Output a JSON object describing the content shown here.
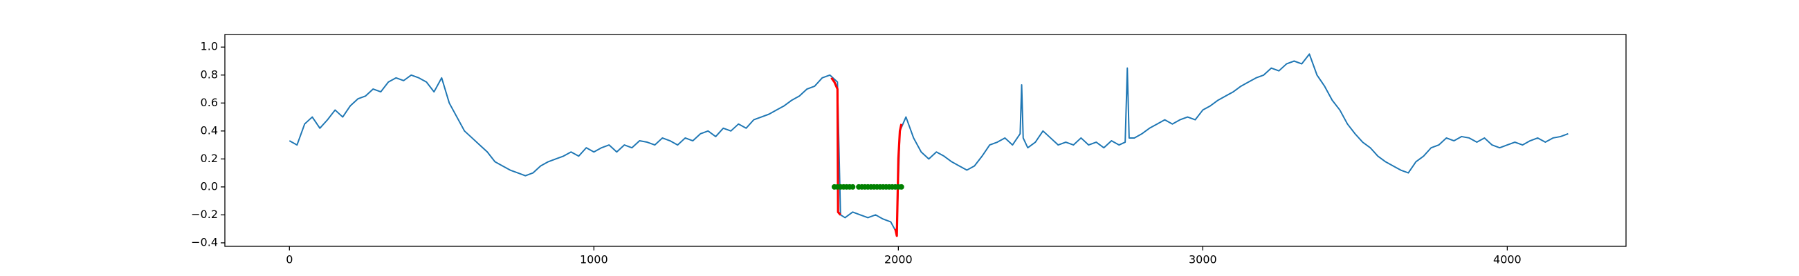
{
  "chart_data": {
    "type": "line",
    "xlim": [
      -212,
      4390
    ],
    "ylim": [
      -0.425,
      1.09
    ],
    "xticks": [
      0,
      1000,
      2000,
      3000,
      4000
    ],
    "yticks": [
      {
        "value": -0.4,
        "label": "−0.4"
      },
      {
        "value": -0.2,
        "label": "−0.2"
      },
      {
        "value": 0,
        "label": "0.0"
      },
      {
        "value": 0.2,
        "label": "0.2"
      },
      {
        "value": 0.4,
        "label": "0.4"
      },
      {
        "value": 0.6,
        "label": "0.6"
      },
      {
        "value": 0.8,
        "label": "0.8"
      },
      {
        "value": 1.0,
        "label": "1.0"
      }
    ],
    "series": [
      {
        "color": "#1f77b4",
        "marker": "none",
        "x": [
          0,
          25,
          50,
          75,
          100,
          125,
          150,
          175,
          200,
          225,
          250,
          275,
          300,
          325,
          350,
          375,
          400,
          425,
          450,
          475,
          500,
          525,
          550,
          575,
          600,
          625,
          650,
          675,
          700,
          725,
          750,
          775,
          800,
          825,
          850,
          875,
          900,
          925,
          950,
          975,
          1000,
          1025,
          1050,
          1075,
          1100,
          1125,
          1150,
          1175,
          1200,
          1225,
          1250,
          1275,
          1300,
          1325,
          1350,
          1375,
          1400,
          1425,
          1450,
          1475,
          1500,
          1525,
          1550,
          1575,
          1600,
          1625,
          1650,
          1675,
          1700,
          1725,
          1750,
          1775,
          1800,
          1810,
          1825,
          1850,
          1875,
          1900,
          1925,
          1950,
          1975,
          1995,
          2005,
          2025,
          2050,
          2075,
          2100,
          2125,
          2150,
          2175,
          2200,
          2225,
          2250,
          2275,
          2300,
          2325,
          2350,
          2375,
          2400,
          2405,
          2410,
          2425,
          2450,
          2475,
          2500,
          2525,
          2550,
          2575,
          2600,
          2625,
          2650,
          2675,
          2700,
          2725,
          2745,
          2752,
          2758,
          2775,
          2800,
          2825,
          2850,
          2875,
          2900,
          2925,
          2950,
          2975,
          3000,
          3025,
          3050,
          3075,
          3100,
          3125,
          3150,
          3175,
          3200,
          3225,
          3250,
          3275,
          3300,
          3325,
          3350,
          3375,
          3400,
          3425,
          3450,
          3475,
          3500,
          3525,
          3550,
          3575,
          3600,
          3625,
          3650,
          3675,
          3700,
          3725,
          3750,
          3775,
          3800,
          3825,
          3850,
          3875,
          3900,
          3925,
          3950,
          3975,
          4000,
          4025,
          4050,
          4075,
          4100,
          4125,
          4150,
          4175,
          4200
        ],
        "values": [
          0.33,
          0.3,
          0.45,
          0.5,
          0.42,
          0.48,
          0.55,
          0.5,
          0.58,
          0.63,
          0.65,
          0.7,
          0.68,
          0.75,
          0.78,
          0.76,
          0.8,
          0.78,
          0.75,
          0.68,
          0.78,
          0.6,
          0.5,
          0.4,
          0.35,
          0.3,
          0.25,
          0.18,
          0.15,
          0.12,
          0.1,
          0.08,
          0.1,
          0.15,
          0.18,
          0.2,
          0.22,
          0.25,
          0.22,
          0.28,
          0.25,
          0.28,
          0.3,
          0.25,
          0.3,
          0.28,
          0.33,
          0.32,
          0.3,
          0.35,
          0.33,
          0.3,
          0.35,
          0.33,
          0.38,
          0.4,
          0.36,
          0.42,
          0.4,
          0.45,
          0.42,
          0.48,
          0.5,
          0.52,
          0.55,
          0.58,
          0.62,
          0.65,
          0.7,
          0.72,
          0.78,
          0.8,
          0.75,
          -0.2,
          -0.22,
          -0.18,
          -0.2,
          -0.22,
          -0.2,
          -0.23,
          -0.25,
          -0.33,
          0.4,
          0.5,
          0.35,
          0.25,
          0.2,
          0.25,
          0.22,
          0.18,
          0.15,
          0.12,
          0.15,
          0.22,
          0.3,
          0.32,
          0.35,
          0.3,
          0.38,
          0.73,
          0.35,
          0.28,
          0.32,
          0.4,
          0.35,
          0.3,
          0.32,
          0.3,
          0.35,
          0.3,
          0.32,
          0.28,
          0.33,
          0.3,
          0.32,
          0.85,
          0.35,
          0.35,
          0.38,
          0.42,
          0.45,
          0.48,
          0.45,
          0.48,
          0.5,
          0.48,
          0.55,
          0.58,
          0.62,
          0.65,
          0.68,
          0.72,
          0.75,
          0.78,
          0.8,
          0.85,
          0.83,
          0.88,
          0.9,
          0.88,
          0.95,
          0.8,
          0.72,
          0.62,
          0.55,
          0.45,
          0.38,
          0.32,
          0.28,
          0.22,
          0.18,
          0.15,
          0.12,
          0.1,
          0.18,
          0.22,
          0.28,
          0.3,
          0.35,
          0.33,
          0.36,
          0.35,
          0.32,
          0.35,
          0.3,
          0.28,
          0.3,
          0.32,
          0.3,
          0.33,
          0.35,
          0.32,
          0.35,
          0.36,
          0.38
        ]
      },
      {
        "color": "red",
        "marker": "none",
        "x": [
          1780,
          1790,
          1800,
          1802,
          1810,
          1900,
          1990,
          1995,
          2000,
          2005,
          2010
        ],
        "values": [
          0.78,
          0.75,
          0.7,
          -0.18,
          -0.2,
          null,
          -0.3,
          -0.35,
          0.2,
          0.4,
          0.45
        ]
      },
      {
        "color": "green",
        "marker": "dot",
        "x": [
          1790,
          1800,
          1810,
          1820,
          1830,
          1840,
          1850,
          1870,
          1880,
          1890,
          1900,
          1910,
          1920,
          1930,
          1940,
          1950,
          1960,
          1970,
          1980,
          1990,
          2000,
          2010
        ],
        "values": [
          0,
          0,
          0,
          0,
          0,
          0,
          0,
          0,
          0,
          0,
          0,
          0,
          0,
          0,
          0,
          0,
          0,
          0,
          0,
          0,
          0,
          0
        ]
      }
    ]
  }
}
